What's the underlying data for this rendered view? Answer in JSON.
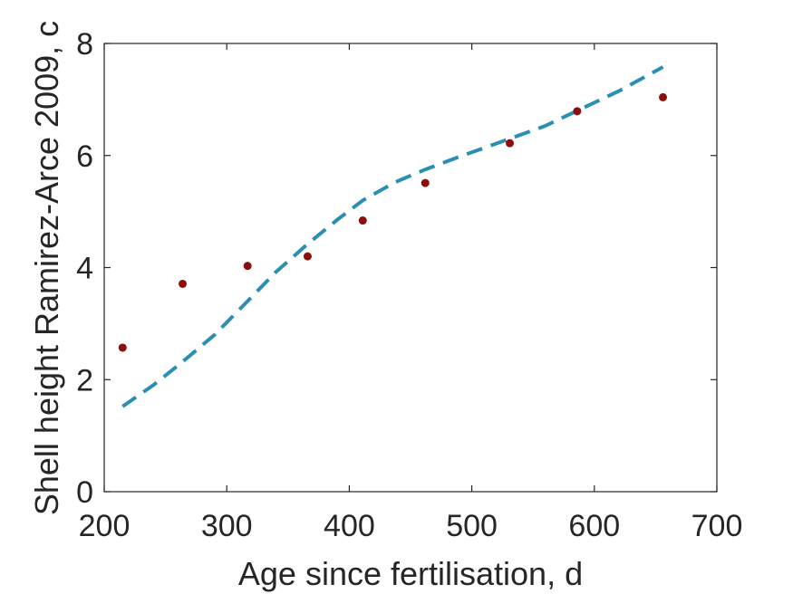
{
  "chart_data": {
    "type": "scatter",
    "xlabel": "Age since fertilisation, d",
    "ylabel": "Shell height Ramirez-Arce 2009, c",
    "xlim": [
      200,
      700
    ],
    "ylim": [
      0,
      8
    ],
    "xticks": [
      "200",
      "300",
      "400",
      "500",
      "600",
      "700"
    ],
    "yticks": [
      "0",
      "2",
      "4",
      "6",
      "8"
    ],
    "grid": false,
    "legend": "none",
    "colors": {
      "points": "#8b0f0b",
      "line": "#2a8fb3",
      "axis": "#262626"
    },
    "series": [
      {
        "type": "scatter",
        "x": [
          215,
          264,
          317,
          366,
          411,
          462,
          531,
          586,
          656
        ],
        "y": [
          2.57,
          3.71,
          4.03,
          4.2,
          4.84,
          5.51,
          6.22,
          6.79,
          7.04
        ]
      },
      {
        "type": "line",
        "style": "dashed",
        "x": [
          215,
          240,
          264,
          290,
          317,
          340,
          366,
          390,
          411,
          437,
          462,
          490,
          531,
          560,
          586,
          620,
          656
        ],
        "y": [
          1.52,
          1.9,
          2.32,
          2.8,
          3.4,
          3.92,
          4.42,
          4.85,
          5.2,
          5.52,
          5.75,
          5.98,
          6.3,
          6.53,
          6.8,
          7.15,
          7.58
        ]
      }
    ]
  }
}
